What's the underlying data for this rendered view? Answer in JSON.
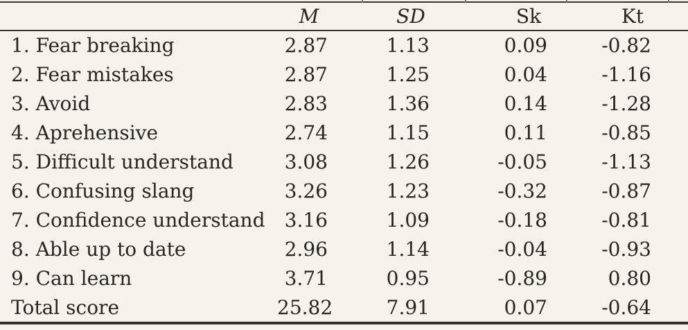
{
  "page": {
    "background_color": "#f7f2ea",
    "text_color": "#29251f",
    "rule_color": "#3a352d"
  },
  "table": {
    "headers": {
      "label": "",
      "m": "M",
      "sd": "SD",
      "sk": "Sk",
      "kt": "Kt"
    },
    "rows": [
      {
        "label": "1. Fear breaking",
        "m": "2.87",
        "sd": "1.13",
        "sk": "0.09",
        "kt": "-0.82"
      },
      {
        "label": "2. Fear mistakes",
        "m": "2.87",
        "sd": "1.25",
        "sk": "0.04",
        "kt": "-1.16"
      },
      {
        "label": "3. Avoid",
        "m": "2.83",
        "sd": "1.36",
        "sk": "0.14",
        "kt": "-1.28"
      },
      {
        "label": "4. Aprehensive",
        "m": "2.74",
        "sd": "1.15",
        "sk": "0.11",
        "kt": "-0.85"
      },
      {
        "label": "5. Difficult understand",
        "m": "3.08",
        "sd": "1.26",
        "sk": "-0.05",
        "kt": "-1.13"
      },
      {
        "label": "6. Confusing slang",
        "m": "3.26",
        "sd": "1.23",
        "sk": "-0.32",
        "kt": "-0.87"
      },
      {
        "label": "7. Confidence understand",
        "m": "3.16",
        "sd": "1.09",
        "sk": "-0.18",
        "kt": "-0.81"
      },
      {
        "label": "8. Able up to date",
        "m": "2.96",
        "sd": "1.14",
        "sk": "-0.04",
        "kt": "-0.93"
      },
      {
        "label": "9. Can learn",
        "m": "3.71",
        "sd": "0.95",
        "sk": "-0.89",
        "kt": "0.80"
      },
      {
        "label": "Total score",
        "m": "25.82",
        "sd": "7.91",
        "sk": "0.07",
        "kt": "-0.64"
      }
    ]
  }
}
